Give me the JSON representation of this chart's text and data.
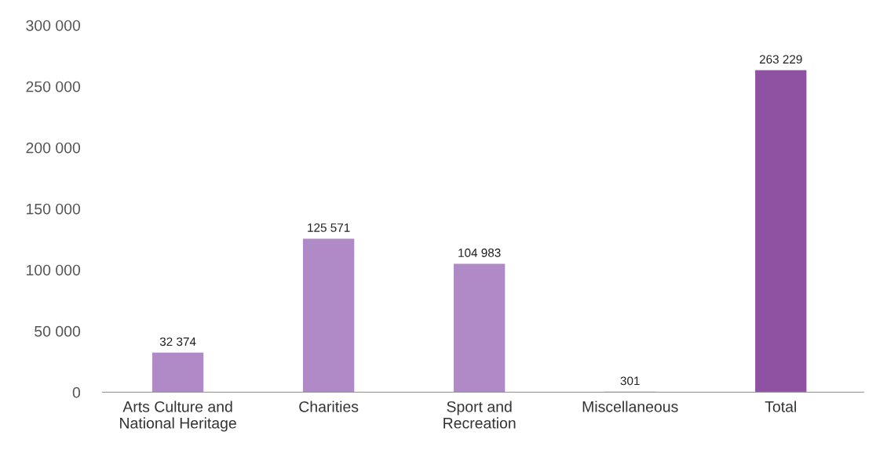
{
  "chart_data": {
    "type": "bar",
    "categories": [
      "Arts Culture and\nNational Heritage",
      "Charities",
      "Sport and\nRecreation",
      "Miscellaneous",
      "Total"
    ],
    "values": [
      32374,
      125571,
      104983,
      301,
      263229
    ],
    "value_labels": [
      "32 374",
      "125 571",
      "104 983",
      "301",
      "263 229"
    ],
    "colors": [
      "#b08ac6",
      "#b08ac6",
      "#b08ac6",
      "#b08ac6",
      "#8f52a3"
    ],
    "ylim": [
      0,
      300000
    ],
    "yticks": [
      {
        "value": 0,
        "label": "0"
      },
      {
        "value": 50000,
        "label": "50 000"
      },
      {
        "value": 100000,
        "label": "100 000"
      },
      {
        "value": 150000,
        "label": "150 000"
      },
      {
        "value": 200000,
        "label": "200 000"
      },
      {
        "value": 250000,
        "label": "250 000"
      },
      {
        "value": 300000,
        "label": "300 000"
      }
    ],
    "grid": false
  }
}
